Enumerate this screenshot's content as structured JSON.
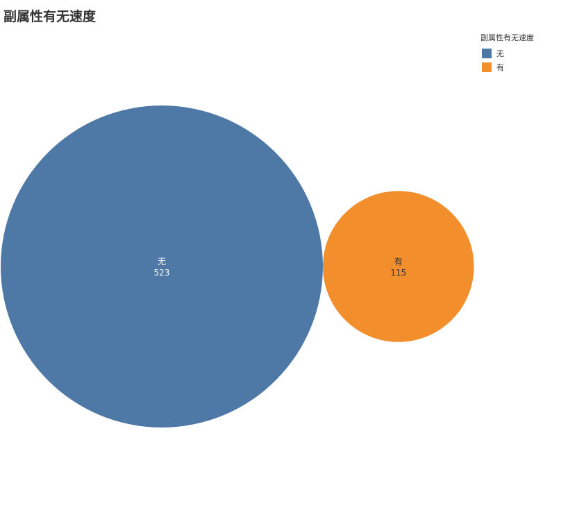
{
  "title": "副属性有无速度",
  "legend": {
    "title": "副属性有无速度",
    "placement": "top-right"
  },
  "chart_data": {
    "type": "bubble",
    "title": "副属性有无速度",
    "categories": [
      "无",
      "有"
    ],
    "values": [
      523,
      115
    ],
    "colors": [
      "#4e79a7",
      "#f28e2b"
    ],
    "label_colors": [
      "#ffffff",
      "#333333"
    ],
    "legend_title": "副属性有无速度"
  }
}
